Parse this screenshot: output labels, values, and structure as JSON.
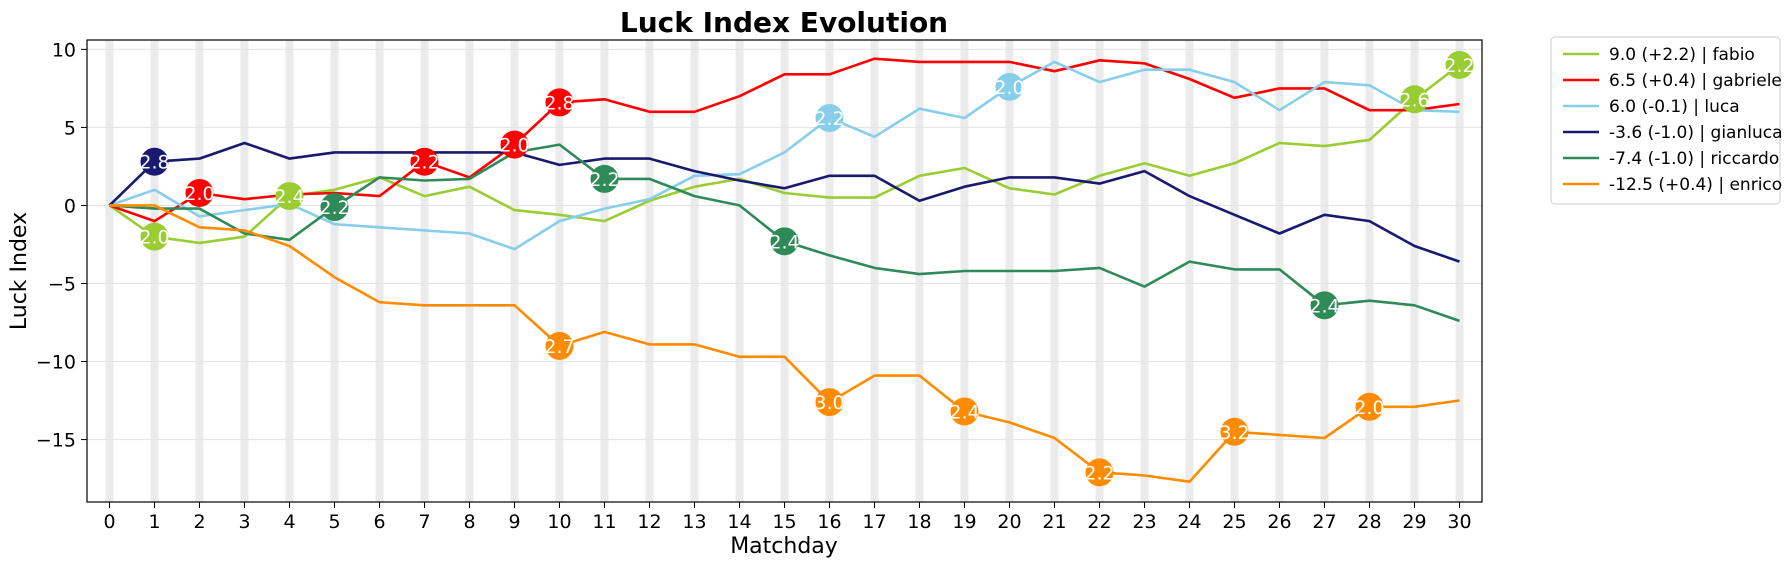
{
  "chart_data": {
    "type": "line",
    "title": "Luck Index Evolution",
    "xlabel": "Matchday",
    "ylabel": "Luck Index",
    "xlim": [
      -0.5,
      30.5
    ],
    "ylim": [
      -19,
      10.6
    ],
    "x_ticks": [
      "0",
      "1",
      "2",
      "3",
      "4",
      "5",
      "6",
      "7",
      "8",
      "9",
      "10",
      "11",
      "12",
      "13",
      "14",
      "15",
      "16",
      "17",
      "18",
      "19",
      "20",
      "21",
      "22",
      "23",
      "24",
      "25",
      "26",
      "27",
      "28",
      "29",
      "30"
    ],
    "y_ticks": [
      {
        "value": 10,
        "label": "10"
      },
      {
        "value": 5,
        "label": "5"
      },
      {
        "value": 0,
        "label": "0"
      },
      {
        "value": -5,
        "label": "−5"
      },
      {
        "value": -10,
        "label": "−10"
      },
      {
        "value": -15,
        "label": "−15"
      }
    ],
    "grid": true,
    "legend_position": "outside-right",
    "x": [
      0,
      1,
      2,
      3,
      4,
      5,
      6,
      7,
      8,
      9,
      10,
      11,
      12,
      13,
      14,
      15,
      16,
      17,
      18,
      19,
      20,
      21,
      22,
      23,
      24,
      25,
      26,
      27,
      28,
      29,
      30
    ],
    "series": [
      {
        "name": "9.0 (+2.2) | fabio",
        "color": "#9acd32",
        "values": [
          0,
          -2.0,
          -2.4,
          -2.0,
          0.6,
          1.0,
          1.8,
          0.6,
          1.2,
          -0.3,
          -0.6,
          -1.0,
          0.3,
          1.2,
          1.7,
          0.8,
          0.5,
          0.5,
          1.9,
          2.4,
          1.1,
          0.7,
          1.9,
          2.7,
          1.9,
          2.7,
          4.0,
          3.8,
          4.2,
          6.8,
          9.0
        ],
        "markers": [
          {
            "x": 1,
            "y": -2.0,
            "label": "2.0"
          },
          {
            "x": 4,
            "y": 0.6,
            "label": "2.4"
          },
          {
            "x": 29,
            "y": 6.8,
            "label": "2.6"
          },
          {
            "x": 30,
            "y": 9.0,
            "label": "2.2"
          }
        ]
      },
      {
        "name": "6.5 (+0.4) | gabriele",
        "color": "#ff0000",
        "values": [
          0,
          -1.0,
          0.8,
          0.4,
          0.7,
          0.8,
          0.6,
          2.8,
          1.8,
          3.9,
          6.6,
          6.8,
          6.0,
          6.0,
          7.0,
          8.4,
          8.4,
          9.4,
          9.2,
          9.2,
          9.2,
          8.6,
          9.3,
          9.1,
          8.1,
          6.9,
          7.5,
          7.5,
          6.1,
          6.1,
          6.5
        ],
        "markers": [
          {
            "x": 2,
            "y": 0.8,
            "label": "2.0"
          },
          {
            "x": 7,
            "y": 2.8,
            "label": "2.2"
          },
          {
            "x": 9,
            "y": 3.9,
            "label": "2.0"
          },
          {
            "x": 10,
            "y": 6.6,
            "label": "2.8"
          }
        ]
      },
      {
        "name": "6.0 (-0.1) | luca",
        "color": "#87ceeb",
        "values": [
          0,
          1.0,
          -0.7,
          -0.3,
          0.1,
          -1.2,
          -1.4,
          -1.6,
          -1.8,
          -2.8,
          -1.0,
          -0.2,
          0.4,
          1.9,
          2.0,
          3.4,
          5.6,
          4.4,
          6.2,
          5.6,
          7.6,
          9.2,
          7.9,
          8.7,
          8.7,
          7.9,
          6.1,
          7.9,
          7.7,
          6.1,
          6.0
        ],
        "markers": [
          {
            "x": 16,
            "y": 5.6,
            "label": "2.2"
          },
          {
            "x": 20,
            "y": 7.6,
            "label": "2.0"
          }
        ]
      },
      {
        "name": "-3.6 (-1.0) | gianluca",
        "color": "#191970",
        "values": [
          0,
          2.8,
          3.0,
          4.0,
          3.0,
          3.4,
          3.4,
          3.4,
          3.4,
          3.4,
          2.6,
          3.0,
          3.0,
          2.2,
          1.6,
          1.1,
          1.9,
          1.9,
          0.3,
          1.2,
          1.8,
          1.8,
          1.4,
          2.2,
          0.6,
          -0.6,
          -1.8,
          -0.6,
          -1.0,
          -2.6,
          -3.6
        ],
        "markers": [
          {
            "x": 1,
            "y": 2.8,
            "label": "2.8"
          }
        ]
      },
      {
        "name": "-7.4 (-1.0) | riccardo",
        "color": "#2e8b57",
        "values": [
          0,
          -0.2,
          -0.2,
          -1.8,
          -2.2,
          -0.1,
          1.8,
          1.6,
          1.7,
          3.4,
          3.9,
          1.7,
          1.7,
          0.6,
          0.0,
          -2.3,
          -3.2,
          -4.0,
          -4.4,
          -4.2,
          -4.2,
          -4.2,
          -4.0,
          -5.2,
          -3.6,
          -4.1,
          -4.1,
          -6.4,
          -6.1,
          -6.4,
          -7.4
        ],
        "markers": [
          {
            "x": 5,
            "y": -0.1,
            "label": "2.2"
          },
          {
            "x": 11,
            "y": 1.7,
            "label": "2.2"
          },
          {
            "x": 15,
            "y": -2.3,
            "label": "2.4"
          },
          {
            "x": 27,
            "y": -6.4,
            "label": "2.4"
          }
        ]
      },
      {
        "name": "-12.5 (+0.4) | enrico",
        "color": "#ff8c00",
        "values": [
          0,
          0.0,
          -1.4,
          -1.6,
          -2.6,
          -4.6,
          -6.2,
          -6.4,
          -6.4,
          -6.4,
          -9.0,
          -8.1,
          -8.9,
          -8.9,
          -9.7,
          -9.7,
          -12.6,
          -10.9,
          -10.9,
          -13.2,
          -13.9,
          -14.9,
          -17.1,
          -17.3,
          -17.7,
          -14.5,
          -14.7,
          -14.9,
          -12.9,
          -12.9,
          -12.5
        ],
        "markers": [
          {
            "x": 10,
            "y": -9.0,
            "label": "2.7"
          },
          {
            "x": 16,
            "y": -12.6,
            "label": "3.0"
          },
          {
            "x": 19,
            "y": -13.2,
            "label": "2.4"
          },
          {
            "x": 22,
            "y": -17.1,
            "label": "2.2"
          },
          {
            "x": 25,
            "y": -14.5,
            "label": "3.2"
          },
          {
            "x": 28,
            "y": -12.9,
            "label": "2.0"
          }
        ]
      }
    ]
  }
}
